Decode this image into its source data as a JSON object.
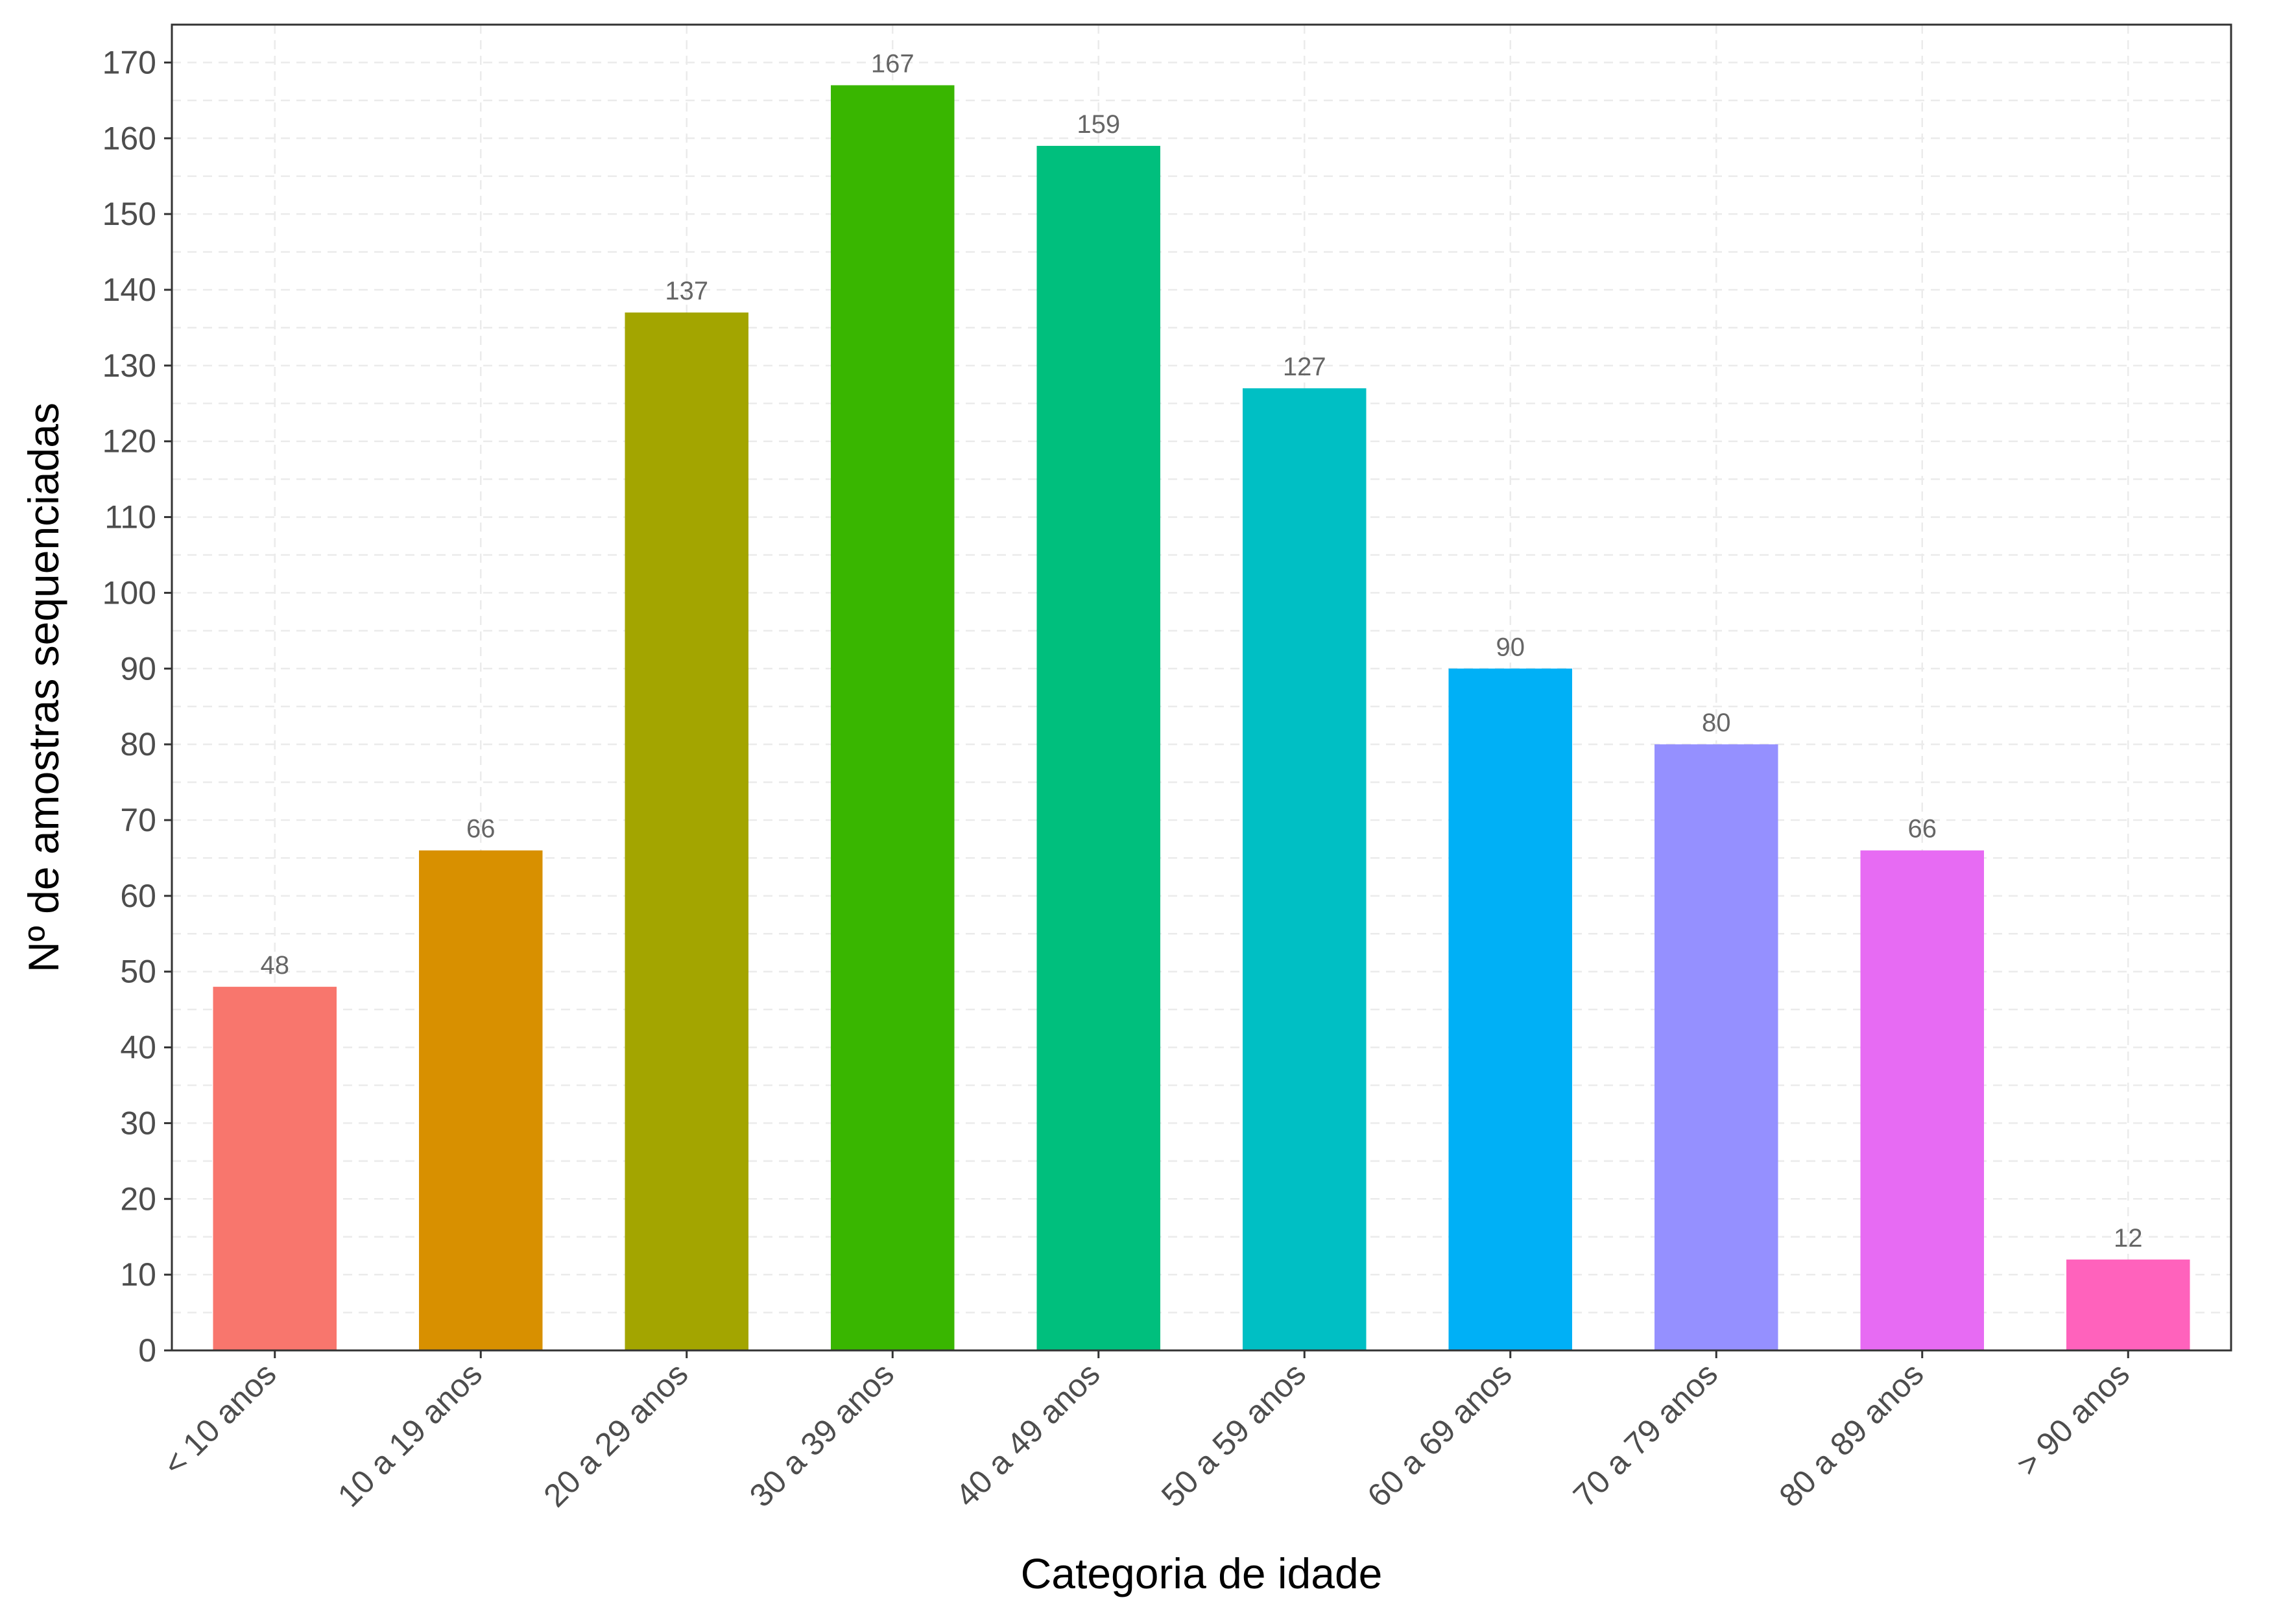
{
  "chart_data": {
    "type": "bar",
    "categories": [
      "< 10 anos",
      "10 a 19 anos",
      "20 a 29 anos",
      "30 a 39 anos",
      "40 a 49 anos",
      "50 a 59 anos",
      "60 a 69 anos",
      "70 a 79 anos",
      "80 a 89 anos",
      "> 90 anos"
    ],
    "values": [
      48,
      66,
      137,
      167,
      159,
      127,
      90,
      80,
      66,
      12
    ],
    "data_labels": [
      "48",
      "66",
      "137",
      "167",
      "159",
      "127",
      "90",
      "80",
      "66",
      "12"
    ],
    "colors": [
      "#F8766D",
      "#D89000",
      "#A3A500",
      "#39B600",
      "#00BF7D",
      "#00BFC4",
      "#00B0F6",
      "#9590FF",
      "#E76BF3",
      "#FF62BC"
    ],
    "xlabel": "Categoria de idade",
    "ylabel": "Nº de amostras sequenciadas",
    "ylim": [
      0,
      175
    ],
    "yticks": [
      0,
      10,
      20,
      30,
      40,
      50,
      60,
      70,
      80,
      90,
      100,
      110,
      120,
      130,
      140,
      150,
      160,
      170
    ],
    "grid": true,
    "legend": "none"
  }
}
